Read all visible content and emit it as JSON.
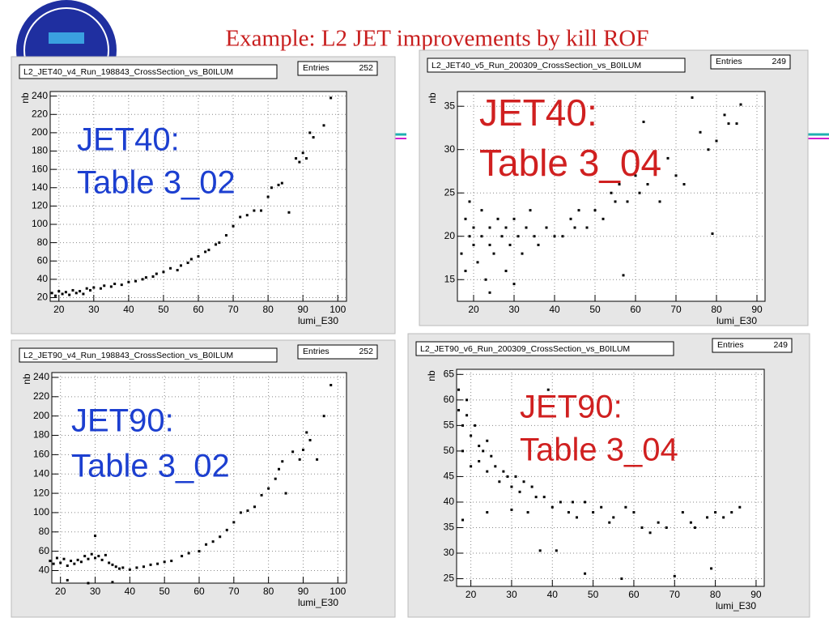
{
  "title": "Example:  L2 JET improvements by kill ROF",
  "chart_data": [
    {
      "type": "scatter",
      "title": "L2_JET40_v4_Run_198843_CrossSection_vs_B0ILUM",
      "stats_label": "Entries",
      "entries": 252,
      "xlabel": "lumi_E30",
      "ylabel": "nb",
      "annotation": [
        "JET40:",
        "Table 3_02"
      ],
      "annotation_color": "#1c3fd0",
      "color": "#000000",
      "grid": true,
      "xlim": [
        17.5,
        102.5
      ],
      "ylim": [
        16,
        245
      ],
      "xticks": [
        20,
        30,
        40,
        50,
        60,
        70,
        80,
        90,
        100
      ],
      "yticks": [
        20,
        40,
        60,
        80,
        100,
        120,
        140,
        160,
        180,
        200,
        220,
        240
      ],
      "x": [
        18,
        19,
        20,
        21,
        22,
        23,
        24,
        25,
        26,
        27,
        28,
        29,
        30,
        32,
        33,
        35,
        36,
        38,
        40,
        42,
        44,
        45,
        47,
        48,
        50,
        52,
        54,
        55,
        57,
        58,
        60,
        62,
        63,
        65,
        66,
        68,
        70,
        72,
        74,
        76,
        78,
        80,
        81,
        83,
        84,
        86,
        88,
        89,
        90,
        91,
        92,
        93,
        96,
        98
      ],
      "y": [
        25,
        22,
        27,
        24,
        26,
        23,
        28,
        25,
        27,
        24,
        30,
        28,
        31,
        30,
        33,
        32,
        35,
        34,
        37,
        38,
        40,
        42,
        43,
        46,
        48,
        52,
        50,
        55,
        58,
        62,
        65,
        70,
        72,
        78,
        80,
        88,
        98,
        108,
        110,
        115,
        115,
        130,
        140,
        143,
        145,
        113,
        172,
        168,
        178,
        172,
        200,
        195,
        208,
        238
      ]
    },
    {
      "type": "scatter",
      "title": "L2_JET40_v5_Run_200309_CrossSection_vs_B0ILUM",
      "stats_label": "Entries",
      "entries": 249,
      "xlabel": "lumi_E30",
      "ylabel": "nb",
      "annotation": [
        "JET40:",
        "Table 3_04"
      ],
      "annotation_color": "#d02020",
      "color": "#000000",
      "grid": true,
      "xlim": [
        16,
        92
      ],
      "ylim": [
        12.5,
        36.7
      ],
      "xticks": [
        20,
        30,
        40,
        50,
        60,
        70,
        80,
        90
      ],
      "yticks": [
        15,
        20,
        25,
        30,
        35
      ],
      "x": [
        17,
        18,
        18,
        19,
        19,
        20,
        20,
        21,
        22,
        22,
        23,
        24,
        24,
        25,
        26,
        27,
        28,
        28,
        29,
        30,
        31,
        32,
        33,
        34,
        35,
        36,
        38,
        40,
        42,
        44,
        45,
        46,
        48,
        50,
        52,
        54,
        55,
        56,
        57,
        58,
        60,
        61,
        62,
        63,
        65,
        66,
        68,
        70,
        72,
        74,
        76,
        78,
        79,
        80,
        82,
        83,
        85,
        86,
        24,
        30
      ],
      "y": [
        18,
        22,
        16,
        20,
        24,
        19,
        21,
        17,
        20,
        23,
        15,
        19,
        21,
        18,
        22,
        20,
        16,
        21,
        19,
        22,
        20,
        18,
        21,
        23,
        20,
        19,
        21,
        20,
        20,
        22,
        21,
        23,
        21,
        23,
        22,
        25,
        24,
        26,
        15.5,
        24,
        27,
        25,
        33.2,
        26,
        28,
        24,
        29,
        27,
        26,
        36,
        32,
        30,
        20.3,
        31,
        34,
        33,
        33,
        35.2,
        13.5,
        14.5
      ]
    },
    {
      "type": "scatter",
      "title": "L2_JET90_v4_Run_198843_CrossSection_vs_B0ILUM",
      "stats_label": "Entries",
      "entries": 252,
      "xlabel": "lumi_E30",
      "ylabel": "nb",
      "annotation": [
        "JET90:",
        "Table 3_02"
      ],
      "annotation_color": "#1c3fd0",
      "color": "#000000",
      "grid": true,
      "xlim": [
        17.5,
        102.5
      ],
      "ylim": [
        27,
        245
      ],
      "xticks": [
        20,
        30,
        40,
        50,
        60,
        70,
        80,
        90,
        100
      ],
      "yticks": [
        40,
        60,
        80,
        100,
        120,
        140,
        160,
        180,
        200,
        220,
        240
      ],
      "x": [
        17,
        18,
        19,
        20,
        21,
        22,
        23,
        24,
        25,
        26,
        27,
        28,
        29,
        30,
        30,
        31,
        32,
        33,
        34,
        35,
        36,
        37,
        38,
        40,
        42,
        44,
        46,
        48,
        50,
        52,
        55,
        57,
        60,
        62,
        64,
        66,
        68,
        70,
        72,
        74,
        76,
        78,
        80,
        82,
        83,
        84,
        85,
        87,
        89,
        90,
        91,
        92,
        94,
        96,
        98,
        22,
        28,
        35
      ],
      "y": [
        50,
        47,
        53,
        48,
        52,
        45,
        50,
        47,
        51,
        49,
        55,
        52,
        57,
        53,
        76,
        55,
        51,
        56,
        48,
        46,
        44,
        42,
        43,
        41,
        43,
        44,
        46,
        47,
        49,
        50,
        55,
        58,
        60,
        67,
        70,
        75,
        82,
        90,
        100,
        102,
        106,
        118,
        125,
        135,
        145,
        153,
        120,
        163,
        155,
        165,
        183,
        175,
        155,
        200,
        232,
        30,
        27,
        28
      ]
    },
    {
      "type": "scatter",
      "title": "L2_JET90_v6_Run_200309_CrossSection_vs_B0ILUM",
      "stats_label": "Entries",
      "entries": 249,
      "xlabel": "lumi_E30",
      "ylabel": "nb",
      "annotation": [
        "JET90:",
        "Table 3_04"
      ],
      "annotation_color": "#d02020",
      "color": "#000000",
      "grid": true,
      "xlim": [
        16.5,
        92
      ],
      "ylim": [
        23.5,
        66
      ],
      "xticks": [
        20,
        30,
        40,
        50,
        60,
        70,
        80,
        90
      ],
      "yticks": [
        25,
        30,
        35,
        40,
        45,
        50,
        55,
        60,
        65
      ],
      "x": [
        17,
        17,
        18,
        18,
        19,
        19,
        20,
        20,
        21,
        22,
        22,
        23,
        24,
        24,
        25,
        26,
        27,
        28,
        29,
        30,
        31,
        32,
        33,
        34,
        35,
        36,
        37,
        38,
        39,
        40,
        41,
        42,
        44,
        45,
        46,
        48,
        48,
        50,
        52,
        54,
        55,
        57,
        58,
        60,
        62,
        64,
        66,
        68,
        70,
        72,
        74,
        75,
        78,
        79,
        80,
        82,
        84,
        86,
        18,
        24,
        30
      ],
      "y": [
        58,
        62,
        55,
        50,
        57,
        60,
        53,
        47,
        55,
        51,
        48,
        50,
        52,
        46,
        49,
        47,
        44,
        46,
        45,
        43,
        45,
        42,
        44,
        38,
        43,
        41,
        30.5,
        41,
        62,
        39,
        30.5,
        40,
        38,
        40,
        37,
        26,
        40,
        38,
        39,
        36,
        37,
        25,
        39,
        38,
        35,
        34,
        36,
        35,
        25.5,
        38,
        36,
        35,
        37,
        27,
        38,
        37,
        38,
        39,
        36.5,
        38,
        38.5
      ]
    }
  ]
}
